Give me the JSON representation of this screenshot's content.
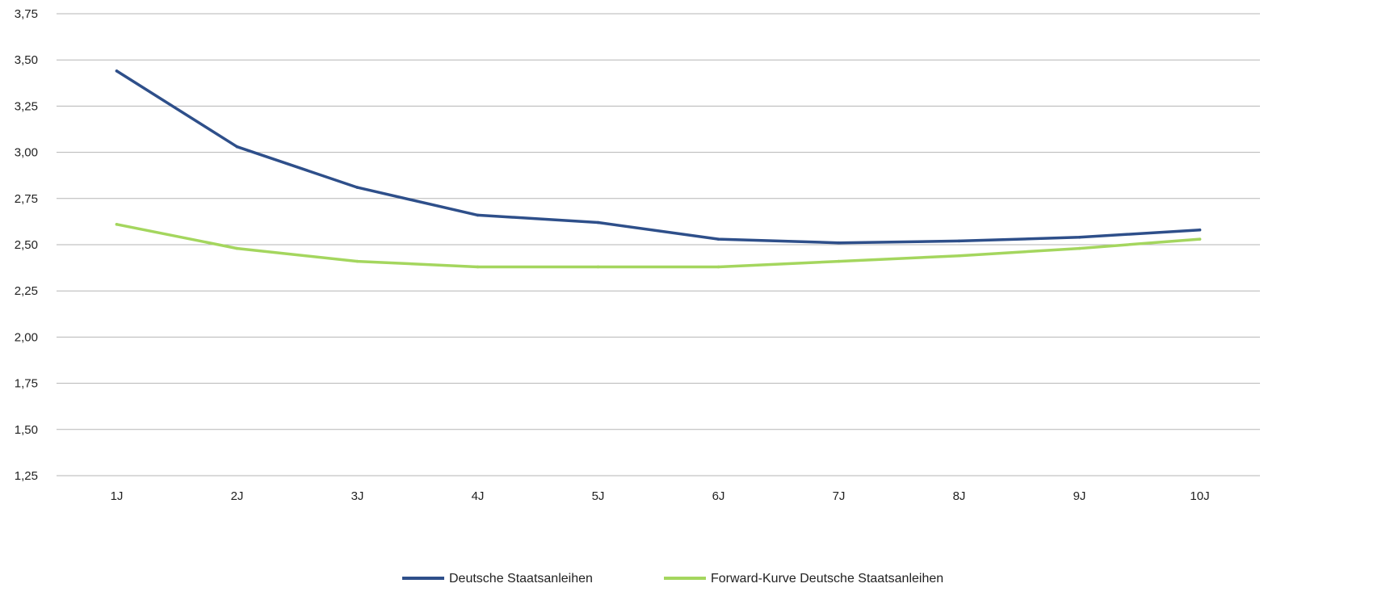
{
  "chart_data": {
    "type": "line",
    "title": "",
    "xlabel": "",
    "ylabel": "",
    "categories": [
      "1J",
      "2J",
      "3J",
      "4J",
      "5J",
      "6J",
      "7J",
      "8J",
      "9J",
      "10J"
    ],
    "ylim": [
      1.25,
      3.75
    ],
    "yticks": [
      1.25,
      1.5,
      1.75,
      2.0,
      2.25,
      2.5,
      2.75,
      3.0,
      3.25,
      3.5,
      3.75
    ],
    "ytick_labels": [
      "1,25",
      "1,50",
      "1,75",
      "2,00",
      "2,25",
      "2,50",
      "2,75",
      "3,00",
      "3,25",
      "3,50",
      "3,75"
    ],
    "grid": "horizontal",
    "legend_position": "bottom",
    "series": [
      {
        "name": "Deutsche Staatsanleihen",
        "color": "#2e4f8a",
        "values": [
          3.44,
          3.03,
          2.81,
          2.66,
          2.62,
          2.53,
          2.51,
          2.52,
          2.54,
          2.58
        ]
      },
      {
        "name": "Forward-Kurve Deutsche Staatsanleihen",
        "color": "#a4d65e",
        "values": [
          2.61,
          2.48,
          2.41,
          2.38,
          2.38,
          2.38,
          2.41,
          2.44,
          2.48,
          2.53
        ]
      }
    ]
  }
}
